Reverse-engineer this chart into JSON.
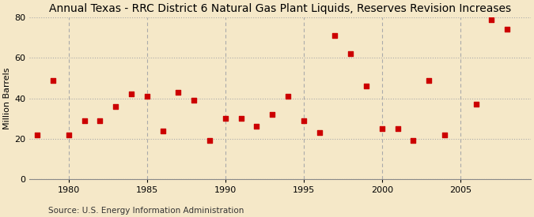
{
  "title": "Annual Texas - RRC District 6 Natural Gas Plant Liquids, Reserves Revision Increases",
  "ylabel": "Million Barrels",
  "source": "Source: U.S. Energy Information Administration",
  "background_color": "#f5e8c8",
  "years": [
    1978,
    1979,
    1980,
    1981,
    1982,
    1983,
    1984,
    1985,
    1986,
    1987,
    1988,
    1989,
    1990,
    1991,
    1992,
    1993,
    1994,
    1995,
    1996,
    1997,
    1998,
    1999,
    2000,
    2001,
    2002,
    2003,
    2004,
    2006,
    2007,
    2008
  ],
  "values": [
    22,
    49,
    22,
    29,
    29,
    36,
    42,
    41,
    24,
    43,
    39,
    19,
    30,
    30,
    26,
    32,
    41,
    29,
    23,
    71,
    62,
    46,
    25,
    25,
    19,
    49,
    22,
    37,
    79,
    74
  ],
  "marker_color": "#cc0000",
  "marker_size": 25,
  "ylim": [
    0,
    80
  ],
  "xlim": [
    1977.5,
    2009.5
  ],
  "yticks": [
    0,
    20,
    40,
    60,
    80
  ],
  "xticks": [
    1980,
    1985,
    1990,
    1995,
    2000,
    2005
  ],
  "grid_color": "#aaaaaa",
  "title_fontsize": 10,
  "label_fontsize": 8,
  "tick_fontsize": 8,
  "source_fontsize": 7.5
}
